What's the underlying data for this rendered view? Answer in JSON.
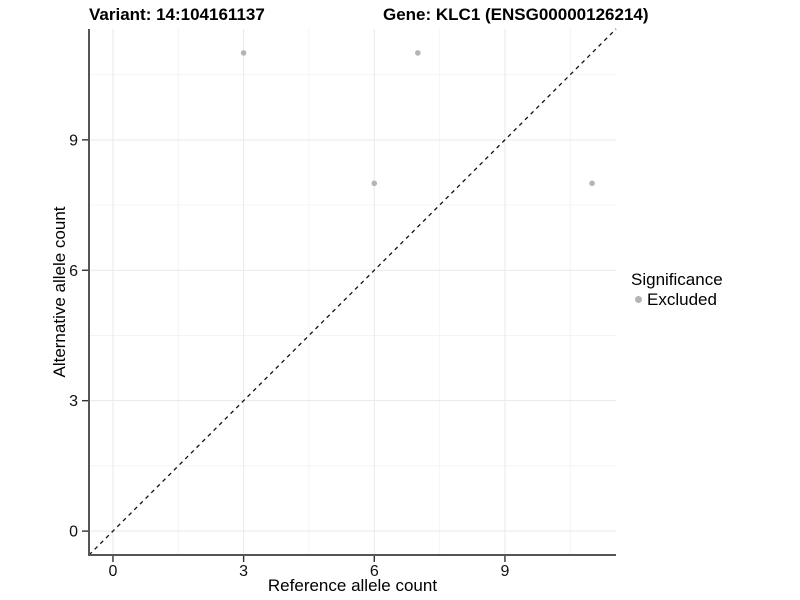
{
  "titles": {
    "variant": "Variant: 14:104161137",
    "gene": "Gene: KLC1 (ENSG00000126214)"
  },
  "chart_data": {
    "type": "scatter",
    "xlabel": "Reference allele count",
    "ylabel": "Alternative allele count",
    "xlim": [
      -0.55,
      11.55
    ],
    "ylim": [
      -0.55,
      11.55
    ],
    "x_ticks": [
      0,
      3,
      6,
      9
    ],
    "y_ticks": [
      0,
      3,
      6,
      9
    ],
    "x_minor_ticks": [
      1.5,
      4.5,
      7.5,
      10.5
    ],
    "y_minor_ticks": [
      1.5,
      4.5,
      7.5,
      10.5
    ],
    "grid": true,
    "series": [
      {
        "name": "Excluded",
        "color": "#b5b5b5",
        "points": [
          [
            3,
            11
          ],
          [
            7,
            11
          ],
          [
            6,
            8
          ],
          [
            11,
            8
          ]
        ]
      }
    ],
    "reference_line": {
      "type": "identity y=x",
      "style": "dashed",
      "color": "#111111"
    },
    "legend": {
      "title": "Significance",
      "position": "right",
      "items": [
        {
          "label": "Excluded",
          "color": "#b5b5b5"
        }
      ]
    }
  },
  "colors": {
    "background": "#ffffff",
    "grid_major": "#e9e9e9",
    "grid_minor": "#f4f4f4",
    "axis_line": "#555555",
    "tick_mark": "#333333",
    "tick_label": "#111111",
    "point": "#b5b5b5"
  }
}
